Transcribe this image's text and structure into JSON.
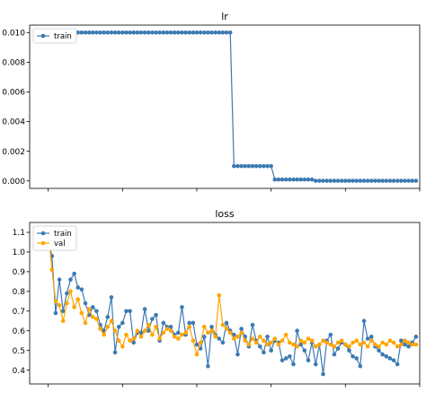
{
  "colors": {
    "train": "#3d7ab3",
    "val": "#ffa500"
  },
  "chart_data": [
    {
      "type": "line",
      "title": "lr",
      "xlabel": "",
      "ylabel": "",
      "xlim": [
        -5,
        100
      ],
      "ylim": [
        -0.0005,
        0.0105
      ],
      "y_ticks": [
        0.0,
        0.002,
        0.004,
        0.006,
        0.008,
        0.01
      ],
      "y_tick_labels": [
        "0.000",
        "0.002",
        "0.004",
        "0.006",
        "0.008",
        "0.010"
      ],
      "x_ticks": [
        0,
        20,
        40,
        60,
        80,
        100
      ],
      "legend": {
        "placement": "top-left",
        "entries": [
          "train"
        ]
      },
      "grid": false,
      "series": [
        {
          "name": "train",
          "x": [
            0,
            1,
            2,
            3,
            4,
            5,
            6,
            7,
            8,
            9,
            10,
            11,
            12,
            13,
            14,
            15,
            16,
            17,
            18,
            19,
            20,
            21,
            22,
            23,
            24,
            25,
            26,
            27,
            28,
            29,
            30,
            31,
            32,
            33,
            34,
            35,
            36,
            37,
            38,
            39,
            40,
            41,
            42,
            43,
            44,
            45,
            46,
            47,
            48,
            49,
            50,
            51,
            52,
            53,
            54,
            55,
            56,
            57,
            58,
            59,
            60,
            61,
            62,
            63,
            64,
            65,
            66,
            67,
            68,
            69,
            70,
            71,
            72,
            73,
            74,
            75,
            76,
            77,
            78,
            79,
            80,
            81,
            82,
            83,
            84,
            85,
            86,
            87,
            88,
            89,
            90,
            91,
            92,
            93,
            94,
            95,
            96,
            97,
            98,
            99
          ],
          "values": [
            0.01,
            0.01,
            0.01,
            0.01,
            0.01,
            0.01,
            0.01,
            0.01,
            0.01,
            0.01,
            0.01,
            0.01,
            0.01,
            0.01,
            0.01,
            0.01,
            0.01,
            0.01,
            0.01,
            0.01,
            0.01,
            0.01,
            0.01,
            0.01,
            0.01,
            0.01,
            0.01,
            0.01,
            0.01,
            0.01,
            0.01,
            0.01,
            0.01,
            0.01,
            0.01,
            0.01,
            0.01,
            0.01,
            0.01,
            0.01,
            0.01,
            0.01,
            0.01,
            0.01,
            0.01,
            0.01,
            0.01,
            0.01,
            0.01,
            0.01,
            0.001,
            0.001,
            0.001,
            0.001,
            0.001,
            0.001,
            0.001,
            0.001,
            0.001,
            0.001,
            0.001,
            0.0001,
            0.0001,
            0.0001,
            0.0001,
            0.0001,
            0.0001,
            0.0001,
            0.0001,
            0.0001,
            0.0001,
            0.0001,
            1e-05,
            1e-05,
            1e-05,
            1e-05,
            1e-05,
            1e-05,
            1e-05,
            1e-05,
            1e-05,
            1e-05,
            1e-05,
            1e-05,
            1e-05,
            1e-05,
            1e-05,
            1e-05,
            1e-05,
            1e-05,
            1e-05,
            1e-05,
            1e-05,
            1e-05,
            1e-05,
            1e-05,
            1e-05,
            1e-05,
            1e-05,
            1e-05
          ]
        }
      ]
    },
    {
      "type": "line",
      "title": "loss",
      "xlabel": "",
      "ylabel": "",
      "xlim": [
        -5,
        100
      ],
      "ylim": [
        0.33,
        1.15
      ],
      "y_ticks": [
        0.4,
        0.5,
        0.6,
        0.7,
        0.8,
        0.9,
        1.0,
        1.1
      ],
      "y_tick_labels": [
        "0.4",
        "0.5",
        "0.6",
        "0.7",
        "0.8",
        "0.9",
        "1.0",
        "1.1"
      ],
      "x_ticks": [
        0,
        20,
        40,
        60,
        80,
        100
      ],
      "legend": {
        "placement": "top-left",
        "entries": [
          "train",
          "val"
        ]
      },
      "grid": false,
      "series": [
        {
          "name": "train",
          "x": [
            0,
            1,
            2,
            3,
            4,
            5,
            6,
            7,
            8,
            9,
            10,
            11,
            12,
            13,
            14,
            15,
            16,
            17,
            18,
            19,
            20,
            21,
            22,
            23,
            24,
            25,
            26,
            27,
            28,
            29,
            30,
            31,
            32,
            33,
            34,
            35,
            36,
            37,
            38,
            39,
            40,
            41,
            42,
            43,
            44,
            45,
            46,
            47,
            48,
            49,
            50,
            51,
            52,
            53,
            54,
            55,
            56,
            57,
            58,
            59,
            60,
            61,
            62,
            63,
            64,
            65,
            66,
            67,
            68,
            69,
            70,
            71,
            72,
            73,
            74,
            75,
            76,
            77,
            78,
            79,
            80,
            81,
            82,
            83,
            84,
            85,
            86,
            87,
            88,
            89,
            90,
            91,
            92,
            93,
            94,
            95,
            96,
            97,
            98,
            99
          ],
          "values": [
            1.06,
            0.98,
            0.69,
            0.86,
            0.7,
            0.79,
            0.86,
            0.89,
            0.82,
            0.81,
            0.74,
            0.68,
            0.72,
            0.7,
            0.63,
            0.6,
            0.67,
            0.77,
            0.49,
            0.62,
            0.64,
            0.7,
            0.7,
            0.54,
            0.59,
            0.59,
            0.71,
            0.6,
            0.66,
            0.68,
            0.55,
            0.64,
            0.62,
            0.62,
            0.58,
            0.59,
            0.72,
            0.58,
            0.64,
            0.64,
            0.53,
            0.51,
            0.57,
            0.42,
            0.62,
            0.58,
            0.56,
            0.54,
            0.64,
            0.6,
            0.58,
            0.48,
            0.61,
            0.57,
            0.52,
            0.63,
            0.55,
            0.52,
            0.49,
            0.57,
            0.5,
            0.55,
            0.54,
            0.45,
            0.46,
            0.47,
            0.43,
            0.6,
            0.53,
            0.5,
            0.45,
            0.54,
            0.43,
            0.53,
            0.38,
            0.55,
            0.58,
            0.48,
            0.51,
            0.54,
            0.53,
            0.5,
            0.47,
            0.46,
            0.42,
            0.65,
            0.56,
            0.57,
            0.52,
            0.5,
            0.48,
            0.47,
            0.46,
            0.45,
            0.43,
            0.55,
            0.53,
            0.52,
            0.54,
            0.57
          ]
        },
        {
          "name": "val",
          "x": [
            0,
            1,
            2,
            3,
            4,
            5,
            6,
            7,
            8,
            9,
            10,
            11,
            12,
            13,
            14,
            15,
            16,
            17,
            18,
            19,
            20,
            21,
            22,
            23,
            24,
            25,
            26,
            27,
            28,
            29,
            30,
            31,
            32,
            33,
            34,
            35,
            36,
            37,
            38,
            39,
            40,
            41,
            42,
            43,
            44,
            45,
            46,
            47,
            48,
            49,
            50,
            51,
            52,
            53,
            54,
            55,
            56,
            57,
            58,
            59,
            60,
            61,
            62,
            63,
            64,
            65,
            66,
            67,
            68,
            69,
            70,
            71,
            72,
            73,
            74,
            75,
            76,
            77,
            78,
            79,
            80,
            81,
            82,
            83,
            84,
            85,
            86,
            87,
            88,
            89,
            90,
            91,
            92,
            93,
            94,
            95,
            96,
            97,
            98,
            99
          ],
          "values": [
            1.11,
            0.91,
            0.75,
            0.73,
            0.65,
            0.74,
            0.8,
            0.72,
            0.76,
            0.69,
            0.64,
            0.71,
            0.67,
            0.66,
            0.61,
            0.58,
            0.62,
            0.65,
            0.6,
            0.55,
            0.52,
            0.58,
            0.55,
            0.56,
            0.6,
            0.57,
            0.6,
            0.63,
            0.58,
            0.62,
            0.56,
            0.59,
            0.61,
            0.6,
            0.57,
            0.56,
            0.58,
            0.59,
            0.62,
            0.55,
            0.48,
            0.54,
            0.62,
            0.59,
            0.6,
            0.57,
            0.78,
            0.63,
            0.61,
            0.59,
            0.56,
            0.57,
            0.59,
            0.55,
            0.53,
            0.56,
            0.54,
            0.57,
            0.55,
            0.53,
            0.54,
            0.56,
            0.53,
            0.55,
            0.58,
            0.54,
            0.53,
            0.52,
            0.55,
            0.54,
            0.56,
            0.55,
            0.52,
            0.53,
            0.55,
            0.54,
            0.53,
            0.52,
            0.54,
            0.55,
            0.53,
            0.52,
            0.54,
            0.55,
            0.53,
            0.54,
            0.52,
            0.55,
            0.53,
            0.52,
            0.54,
            0.53,
            0.55,
            0.54,
            0.52,
            0.53,
            0.55,
            0.54,
            0.53,
            0.53
          ]
        }
      ]
    }
  ]
}
